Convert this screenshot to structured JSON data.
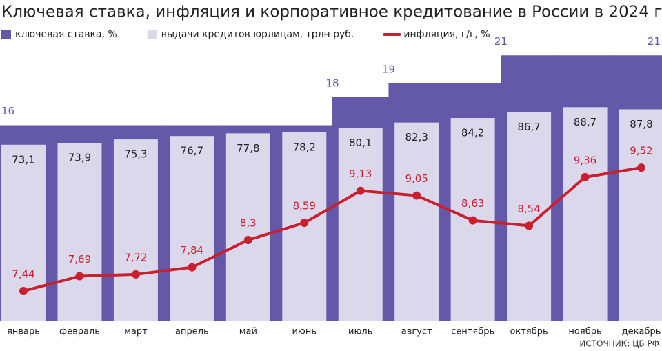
{
  "chart_data": {
    "type": "bar-line",
    "title": "Ключевая ставка, инфляция и корпоративное кредитование в России в 2024 г.",
    "source": "ИСТОЧНИК: ЦБ РФ",
    "categories": [
      "январь",
      "февраль",
      "март",
      "апрель",
      "май",
      "июнь",
      "июль",
      "август",
      "сентябрь",
      "октябрь",
      "ноябрь",
      "декабрь"
    ],
    "series": [
      {
        "name": "ключевая ставка, %",
        "type": "step-area",
        "color": "#6459a8",
        "ylim": [
          2,
          22
        ],
        "values": [
          16,
          16,
          16,
          16,
          16,
          16,
          18,
          19,
          19,
          21,
          21,
          21
        ],
        "value_labels": [
          "16",
          null,
          null,
          null,
          null,
          null,
          "18",
          "19",
          null,
          "21",
          null,
          "21"
        ]
      },
      {
        "name": "выдачи кредитов юрлицам, трлн руб.",
        "type": "bar",
        "color": "#dcd8ec",
        "ylim": [
          0,
          116
        ],
        "values": [
          73.1,
          73.9,
          75.3,
          76.7,
          77.8,
          78.2,
          80.1,
          82.3,
          84.2,
          86.7,
          88.7,
          87.8
        ],
        "value_labels": [
          "73,1",
          "73,9",
          "75,3",
          "76,7",
          "77,8",
          "78,2",
          "80,1",
          "82,3",
          "84,2",
          "86,7",
          "88,7",
          "87,8"
        ]
      },
      {
        "name": "инфляция, г/г, %",
        "type": "line",
        "color": "#c8202e",
        "ylim": [
          6.94,
          11.65
        ],
        "values": [
          7.44,
          7.69,
          7.72,
          7.84,
          8.3,
          8.59,
          9.13,
          9.05,
          8.63,
          8.54,
          9.36,
          9.52
        ],
        "value_labels": [
          "7,44",
          "7,69",
          "7,72",
          "7,84",
          "8,3",
          "8,59",
          "9,13",
          "9,05",
          "8,63",
          "8,54",
          "9,36",
          "9,52"
        ]
      }
    ]
  }
}
